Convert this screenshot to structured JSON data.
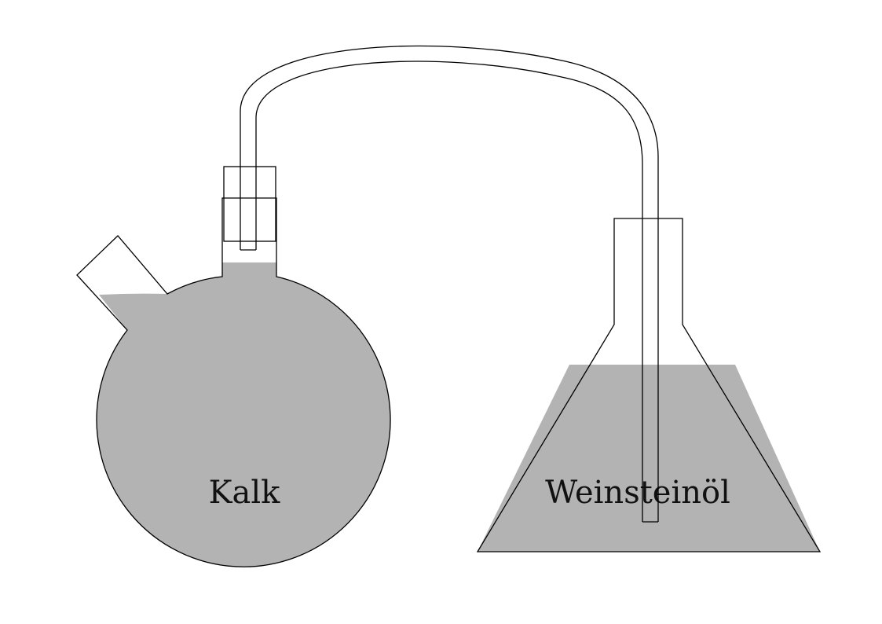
{
  "flask_left": {
    "label": "Kalk"
  },
  "flask_right": {
    "label": "Weinsteinöl"
  },
  "colors": {
    "liquid": "#b3b3b3",
    "stroke": "#000000",
    "background": "#ffffff",
    "text": "#111111"
  }
}
